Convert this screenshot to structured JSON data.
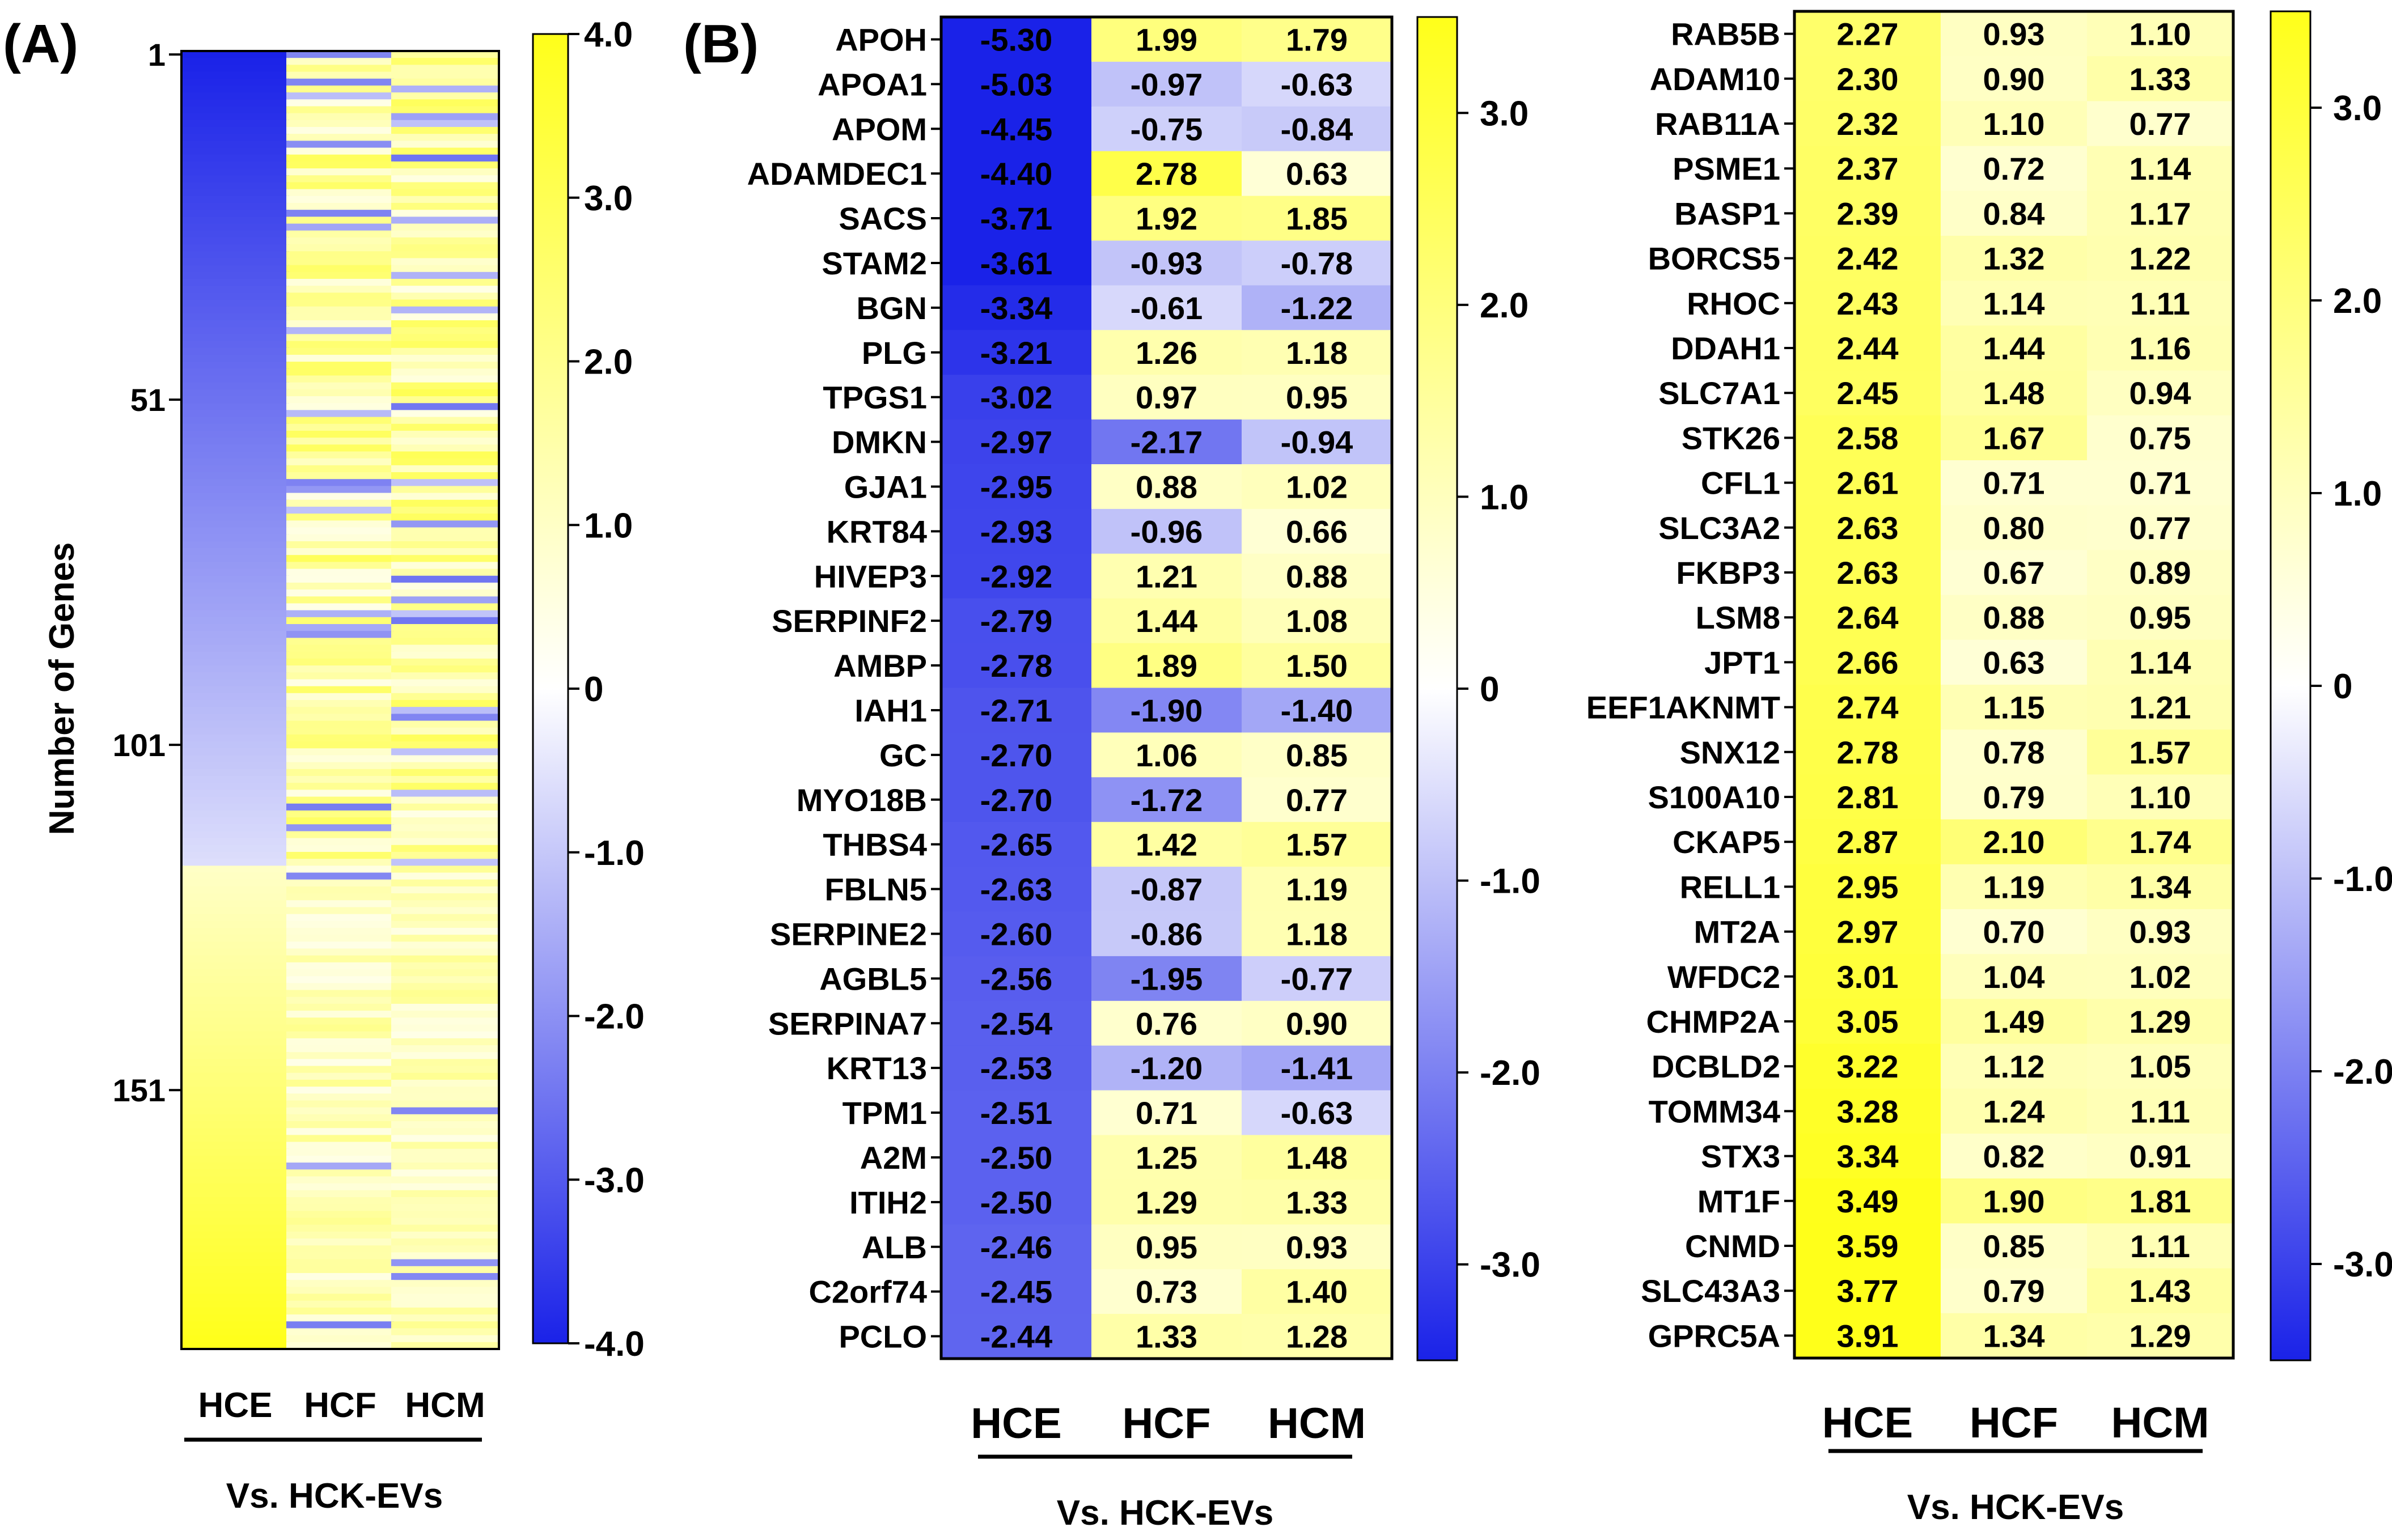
{
  "colors": {
    "low": "#1a22e8",
    "mid": "#ffffff",
    "high": "#ffff1a"
  },
  "chart_data": [
    {
      "type": "heatmap",
      "panel_label": "(A)",
      "title": "",
      "ylabel": "Number of Genes",
      "y_ticks": [
        "1",
        "51",
        "101",
        "151"
      ],
      "columns": [
        "HCE",
        "HCF",
        "HCM"
      ],
      "group_label": "Vs.  HCK-EVs",
      "n_genes": 188,
      "colorbar": {
        "ticks": [
          "4.0",
          "3.0",
          "2.0",
          "1.0",
          "0",
          "-1.0",
          "-2.0",
          "-3.0",
          "-4.0"
        ],
        "range": [
          -4,
          4
        ]
      },
      "HCE_gradient": [
        {
          "gene_index": 1,
          "value": -4.0
        },
        {
          "gene_index": 118,
          "value": -0.6
        },
        {
          "gene_index": 119,
          "value": 1.0
        },
        {
          "gene_index": 188,
          "value": 4.0
        }
      ],
      "HCF_HCM_note": "mostly positive values (0.5-3) with scattered negative rows"
    },
    {
      "type": "heatmap",
      "panel_label": "(B)",
      "columns": [
        "HCE",
        "HCF",
        "HCM"
      ],
      "group_label": "Vs.  HCK-EVs",
      "colorbar": {
        "ticks": [
          "3.0",
          "2.0",
          "1.0",
          "0",
          "-1.0",
          "-2.0",
          "-3.0"
        ],
        "range": [
          -3.5,
          3.5
        ]
      },
      "genes": [
        "APOH",
        "APOA1",
        "APOM",
        "ADAMDEC1",
        "SACS",
        "STAM2",
        "BGN",
        "PLG",
        "TPGS1",
        "DMKN",
        "GJA1",
        "KRT84",
        "HIVEP3",
        "SERPINF2",
        "AMBP",
        "IAH1",
        "GC",
        "MYO18B",
        "THBS4",
        "FBLN5",
        "SERPINE2",
        "AGBL5",
        "SERPINA7",
        "KRT13",
        "TPM1",
        "A2M",
        "ITIH2",
        "ALB",
        "C2orf74",
        "PCLO"
      ],
      "values": [
        [
          -5.3,
          1.99,
          1.79
        ],
        [
          -5.03,
          -0.97,
          -0.63
        ],
        [
          -4.45,
          -0.75,
          -0.84
        ],
        [
          -4.4,
          2.78,
          0.63
        ],
        [
          -3.71,
          1.92,
          1.85
        ],
        [
          -3.61,
          -0.93,
          -0.78
        ],
        [
          -3.34,
          -0.61,
          -1.22
        ],
        [
          -3.21,
          1.26,
          1.18
        ],
        [
          -3.02,
          0.97,
          0.95
        ],
        [
          -2.97,
          -2.17,
          -0.94
        ],
        [
          -2.95,
          0.88,
          1.02
        ],
        [
          -2.93,
          -0.96,
          0.66
        ],
        [
          -2.92,
          1.21,
          0.88
        ],
        [
          -2.79,
          1.44,
          1.08
        ],
        [
          -2.78,
          1.89,
          1.5
        ],
        [
          -2.71,
          -1.9,
          -1.4
        ],
        [
          -2.7,
          1.06,
          0.85
        ],
        [
          -2.7,
          -1.72,
          0.77
        ],
        [
          -2.65,
          1.42,
          1.57
        ],
        [
          -2.63,
          -0.87,
          1.19
        ],
        [
          -2.6,
          -0.86,
          1.18
        ],
        [
          -2.56,
          -1.95,
          -0.77
        ],
        [
          -2.54,
          0.76,
          0.9
        ],
        [
          -2.53,
          -1.2,
          -1.41
        ],
        [
          -2.51,
          0.71,
          -0.63
        ],
        [
          -2.5,
          1.25,
          1.48
        ],
        [
          -2.5,
          1.29,
          1.33
        ],
        [
          -2.46,
          0.95,
          0.93
        ],
        [
          -2.45,
          0.73,
          1.4
        ],
        [
          -2.44,
          1.33,
          1.28
        ]
      ],
      "value_labels": [
        [
          "-5.30",
          "1.99",
          "1.79"
        ],
        [
          "-5.03",
          "-0.97",
          "-0.63"
        ],
        [
          "-4.45",
          "-0.75",
          "-0.84"
        ],
        [
          "-4.40",
          "2.78",
          "0.63"
        ],
        [
          "-3.71",
          "1.92",
          "1.85"
        ],
        [
          "-3.61",
          "-0.93",
          "-0.78"
        ],
        [
          "-3.34",
          "-0.61",
          "-1.22"
        ],
        [
          "-3.21",
          "1.26",
          "1.18"
        ],
        [
          "-3.02",
          "0.97",
          "0.95"
        ],
        [
          "-2.97",
          "-2.17",
          "-0.94"
        ],
        [
          "-2.95",
          "0.88",
          "1.02"
        ],
        [
          "-2.93",
          "-0.96",
          "0.66"
        ],
        [
          "-2.92",
          "1.21",
          "0.88"
        ],
        [
          "-2.79",
          "1.44",
          "1.08"
        ],
        [
          "-2.78",
          "1.89",
          "1.50"
        ],
        [
          "-2.71",
          "-1.90",
          "-1.40"
        ],
        [
          "-2.70",
          "1.06",
          "0.85"
        ],
        [
          "-2.70",
          "-1.72",
          "0.77"
        ],
        [
          "-2.65",
          "1.42",
          "1.57"
        ],
        [
          "-2.63",
          "-0.87",
          "1.19"
        ],
        [
          "-2.60",
          "-0.86",
          "1.18"
        ],
        [
          "-2.56",
          "-1.95",
          "-0.77"
        ],
        [
          "-2.54",
          "0.76",
          "0.90"
        ],
        [
          "-2.53",
          "-1.20",
          "-1.41"
        ],
        [
          "-2.51",
          "0.71",
          "-0.63"
        ],
        [
          "-2.50",
          "1.25",
          "1.48"
        ],
        [
          "-2.50",
          "1.29",
          "1.33"
        ],
        [
          "-2.46",
          "0.95",
          "0.93"
        ],
        [
          "-2.45",
          "0.73",
          "1.40"
        ],
        [
          "-2.44",
          "1.33",
          "1.28"
        ]
      ]
    },
    {
      "type": "heatmap",
      "panel_label": "",
      "columns": [
        "HCE",
        "HCF",
        "HCM"
      ],
      "group_label": "Vs.  HCK-EVs",
      "colorbar": {
        "ticks": [
          "3.0",
          "2.0",
          "1.0",
          "0",
          "-1.0",
          "-2.0",
          "-3.0"
        ],
        "range": [
          -3.5,
          3.5
        ]
      },
      "genes": [
        "RAB5B",
        "ADAM10",
        "RAB11A",
        "PSME1",
        "BASP1",
        "BORCS5",
        "RHOC",
        "DDAH1",
        "SLC7A1",
        "STK26",
        "CFL1",
        "SLC3A2",
        "FKBP3",
        "LSM8",
        "JPT1",
        "EEF1AKNMT",
        "SNX12",
        "S100A10",
        "CKAP5",
        "RELL1",
        "MT2A",
        "WFDC2",
        "CHMP2A",
        "DCBLD2",
        "TOMM34",
        "STX3",
        "MT1F",
        "CNMD",
        "SLC43A3",
        "GPRC5A"
      ],
      "values": [
        [
          2.27,
          0.93,
          1.1
        ],
        [
          2.3,
          0.9,
          1.33
        ],
        [
          2.32,
          1.1,
          0.77
        ],
        [
          2.37,
          0.72,
          1.14
        ],
        [
          2.39,
          0.84,
          1.17
        ],
        [
          2.42,
          1.32,
          1.22
        ],
        [
          2.43,
          1.14,
          1.11
        ],
        [
          2.44,
          1.44,
          1.16
        ],
        [
          2.45,
          1.48,
          0.94
        ],
        [
          2.58,
          1.67,
          0.75
        ],
        [
          2.61,
          0.71,
          0.71
        ],
        [
          2.63,
          0.8,
          0.77
        ],
        [
          2.63,
          0.67,
          0.89
        ],
        [
          2.64,
          0.88,
          0.95
        ],
        [
          2.66,
          0.63,
          1.14
        ],
        [
          2.74,
          1.15,
          1.21
        ],
        [
          2.78,
          0.78,
          1.57
        ],
        [
          2.81,
          0.79,
          1.1
        ],
        [
          2.87,
          2.1,
          1.74
        ],
        [
          2.95,
          1.19,
          1.34
        ],
        [
          2.97,
          0.7,
          0.93
        ],
        [
          3.01,
          1.04,
          1.02
        ],
        [
          3.05,
          1.49,
          1.29
        ],
        [
          3.22,
          1.12,
          1.05
        ],
        [
          3.28,
          1.24,
          1.11
        ],
        [
          3.34,
          0.82,
          0.91
        ],
        [
          3.49,
          1.9,
          1.81
        ],
        [
          3.59,
          0.85,
          1.11
        ],
        [
          3.77,
          0.79,
          1.43
        ],
        [
          3.91,
          1.34,
          1.29
        ]
      ],
      "value_labels": [
        [
          "2.27",
          "0.93",
          "1.10"
        ],
        [
          "2.30",
          "0.90",
          "1.33"
        ],
        [
          "2.32",
          "1.10",
          "0.77"
        ],
        [
          "2.37",
          "0.72",
          "1.14"
        ],
        [
          "2.39",
          "0.84",
          "1.17"
        ],
        [
          "2.42",
          "1.32",
          "1.22"
        ],
        [
          "2.43",
          "1.14",
          "1.11"
        ],
        [
          "2.44",
          "1.44",
          "1.16"
        ],
        [
          "2.45",
          "1.48",
          "0.94"
        ],
        [
          "2.58",
          "1.67",
          "0.75"
        ],
        [
          "2.61",
          "0.71",
          "0.71"
        ],
        [
          "2.63",
          "0.80",
          "0.77"
        ],
        [
          "2.63",
          "0.67",
          "0.89"
        ],
        [
          "2.64",
          "0.88",
          "0.95"
        ],
        [
          "2.66",
          "0.63",
          "1.14"
        ],
        [
          "2.74",
          "1.15",
          "1.21"
        ],
        [
          "2.78",
          "0.78",
          "1.57"
        ],
        [
          "2.81",
          "0.79",
          "1.10"
        ],
        [
          "2.87",
          "2.10",
          "1.74"
        ],
        [
          "2.95",
          "1.19",
          "1.34"
        ],
        [
          "2.97",
          "0.70",
          "0.93"
        ],
        [
          "3.01",
          "1.04",
          "1.02"
        ],
        [
          "3.05",
          "1.49",
          "1.29"
        ],
        [
          "3.22",
          "1.12",
          "1.05"
        ],
        [
          "3.28",
          "1.24",
          "1.11"
        ],
        [
          "3.34",
          "0.82",
          "0.91"
        ],
        [
          "3.49",
          "1.90",
          "1.81"
        ],
        [
          "3.59",
          "0.85",
          "1.11"
        ],
        [
          "3.77",
          "0.79",
          "1.43"
        ],
        [
          "3.91",
          "1.34",
          "1.29"
        ]
      ]
    }
  ]
}
